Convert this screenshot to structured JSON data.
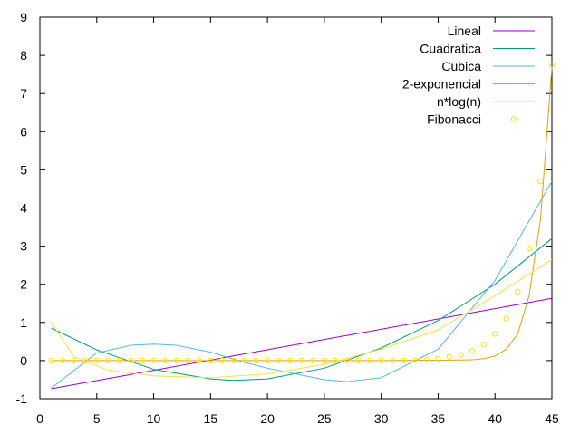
{
  "chart_data": {
    "type": "line",
    "title": "",
    "xlabel": "",
    "ylabel": "",
    "xlim": [
      0,
      45
    ],
    "ylim": [
      -1,
      9
    ],
    "xticks": [
      0,
      5,
      10,
      15,
      20,
      25,
      30,
      35,
      40,
      45
    ],
    "yticks": [
      -1,
      0,
      1,
      2,
      3,
      4,
      5,
      6,
      7,
      8,
      9
    ],
    "xtick_labels": [
      "0",
      "5",
      "10",
      "15",
      "20",
      "25",
      "30",
      "35",
      "40",
      "45"
    ],
    "ytick_labels": [
      "-1",
      "0",
      "1",
      "2",
      "3",
      "4",
      "5",
      "6",
      "7",
      "8",
      "9"
    ],
    "grid": false,
    "legend_position": "top-right",
    "series": [
      {
        "name": "Lineal",
        "style": "line",
        "color": "#9400d3",
        "x": [
          1,
          45
        ],
        "y": [
          -0.74,
          1.63
        ]
      },
      {
        "name": "Cuadratica",
        "style": "line",
        "color": "#009e73",
        "x": [
          1,
          5,
          10,
          15,
          17,
          20,
          25,
          30,
          35,
          40,
          45
        ],
        "y": [
          0.85,
          0.28,
          -0.23,
          -0.48,
          -0.52,
          -0.48,
          -0.2,
          0.33,
          1.05,
          2.0,
          3.2
        ]
      },
      {
        "name": "Cubica",
        "style": "line",
        "color": "#56b4e9",
        "x": [
          1,
          5,
          8,
          10,
          12,
          15,
          18,
          20,
          25,
          27,
          30,
          35,
          40,
          45
        ],
        "y": [
          -0.72,
          0.2,
          0.4,
          0.43,
          0.4,
          0.22,
          -0.05,
          -0.2,
          -0.5,
          -0.55,
          -0.45,
          0.3,
          2.1,
          4.7
        ]
      },
      {
        "name": "2-exponencial",
        "style": "line",
        "color": "#e69f00",
        "x": [
          1,
          30,
          35,
          38,
          39,
          40,
          41,
          42,
          43,
          44,
          45
        ],
        "y": [
          0,
          0,
          0.01,
          0.02,
          0.05,
          0.12,
          0.3,
          0.7,
          1.7,
          3.7,
          7.7
        ]
      },
      {
        "name": "n*log(n)",
        "style": "line",
        "color": "#f0e442",
        "x": [
          1,
          3,
          6,
          10,
          15,
          20,
          25,
          30,
          35,
          40,
          45
        ],
        "y": [
          1.0,
          0.1,
          -0.25,
          -0.4,
          -0.45,
          -0.35,
          -0.1,
          0.3,
          0.8,
          1.7,
          2.65
        ]
      },
      {
        "name": "Fibonacci",
        "style": "points",
        "color": "#f0e442",
        "x": [
          1,
          2,
          3,
          4,
          5,
          6,
          7,
          8,
          9,
          10,
          11,
          12,
          13,
          14,
          15,
          16,
          17,
          18,
          19,
          20,
          21,
          22,
          23,
          24,
          25,
          26,
          27,
          28,
          29,
          30,
          31,
          32,
          33,
          34,
          35,
          36,
          37,
          38,
          39,
          40,
          41,
          42,
          43,
          44,
          45
        ],
        "y": [
          0,
          0,
          0,
          0,
          0,
          0,
          0,
          0,
          0,
          0,
          0,
          0,
          0,
          0,
          0,
          0,
          0,
          0,
          0,
          0,
          0,
          0,
          0,
          0,
          0,
          0,
          0,
          0,
          0,
          0,
          0,
          0,
          0.01,
          0.02,
          0.05,
          0.1,
          0.15,
          0.25,
          0.42,
          0.7,
          1.1,
          1.8,
          2.94,
          4.7,
          7.75
        ]
      }
    ]
  }
}
